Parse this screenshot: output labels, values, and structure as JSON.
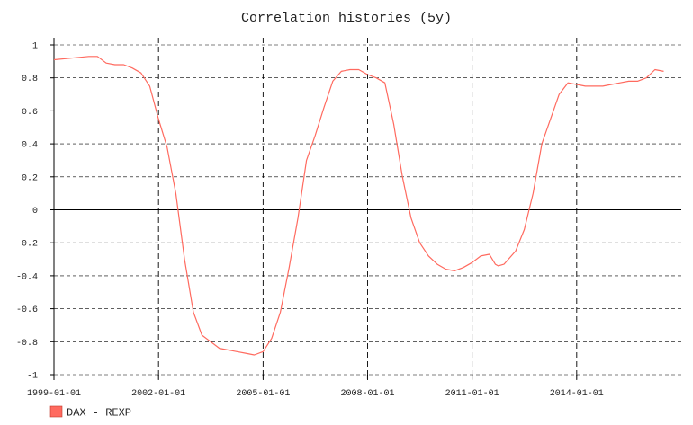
{
  "chart_data": {
    "type": "line",
    "title": "Correlation histories (5y)",
    "xlabel": "",
    "ylabel": "",
    "xlim": [
      "1999-01-01",
      "2017-01-01"
    ],
    "ylim": [
      -1.0,
      1.0
    ],
    "x_ticks": [
      "1999-01-01",
      "2002-01-01",
      "2005-01-01",
      "2008-01-01",
      "2011-01-01",
      "2014-01-01"
    ],
    "y_ticks": [
      "1",
      "0.8",
      "0.6",
      "0.4",
      "0.2",
      "0",
      "-0.2",
      "-0.4",
      "-0.6",
      "-0.8",
      "-1"
    ],
    "grid": true,
    "legend_position": "bottom-left",
    "series": [
      {
        "name": "DAX - REXP",
        "color": "#ff6a5f",
        "x": [
          "1999-01-01",
          "1999-07-01",
          "2000-01-01",
          "2000-04-01",
          "2000-07-01",
          "2000-10-01",
          "2001-01-01",
          "2001-04-01",
          "2001-07-01",
          "2001-10-01",
          "2002-01-01",
          "2002-04-01",
          "2002-07-01",
          "2002-10-01",
          "2003-01-01",
          "2003-04-01",
          "2003-07-01",
          "2003-10-01",
          "2004-01-01",
          "2004-04-01",
          "2004-07-01",
          "2004-10-01",
          "2005-01-01",
          "2005-04-01",
          "2005-07-01",
          "2005-10-01",
          "2006-01-01",
          "2006-04-01",
          "2006-07-01",
          "2006-10-01",
          "2007-01-01",
          "2007-04-01",
          "2007-07-01",
          "2007-10-01",
          "2008-01-01",
          "2008-04-01",
          "2008-07-01",
          "2008-10-01",
          "2009-01-01",
          "2009-04-01",
          "2009-07-01",
          "2009-10-01",
          "2010-01-01",
          "2010-04-01",
          "2010-07-01",
          "2010-10-01",
          "2011-01-01",
          "2011-04-01",
          "2011-07-01",
          "2011-09-01",
          "2011-10-01",
          "2011-12-01",
          "2012-04-01",
          "2012-07-01",
          "2012-10-01",
          "2013-01-01",
          "2013-04-01",
          "2013-07-01",
          "2013-10-01",
          "2014-01-01",
          "2014-04-01",
          "2014-07-01",
          "2014-10-01",
          "2015-01-01",
          "2015-04-01",
          "2015-07-01",
          "2015-10-01",
          "2016-01-01",
          "2016-04-01",
          "2016-07-01"
        ],
        "values": [
          0.91,
          0.92,
          0.93,
          0.93,
          0.89,
          0.88,
          0.88,
          0.86,
          0.83,
          0.75,
          0.55,
          0.38,
          0.1,
          -0.3,
          -0.62,
          -0.76,
          -0.8,
          -0.84,
          -0.85,
          -0.86,
          -0.87,
          -0.88,
          -0.86,
          -0.78,
          -0.62,
          -0.35,
          -0.05,
          0.3,
          0.45,
          0.62,
          0.78,
          0.84,
          0.85,
          0.85,
          0.82,
          0.8,
          0.77,
          0.52,
          0.2,
          -0.05,
          -0.2,
          -0.28,
          -0.33,
          -0.36,
          -0.37,
          -0.35,
          -0.32,
          -0.28,
          -0.27,
          -0.33,
          -0.34,
          -0.33,
          -0.25,
          -0.12,
          0.1,
          0.4,
          0.55,
          0.7,
          0.77,
          0.76,
          0.75,
          0.75,
          0.75,
          0.76,
          0.77,
          0.78,
          0.78,
          0.8,
          0.85,
          0.84
        ]
      }
    ]
  }
}
